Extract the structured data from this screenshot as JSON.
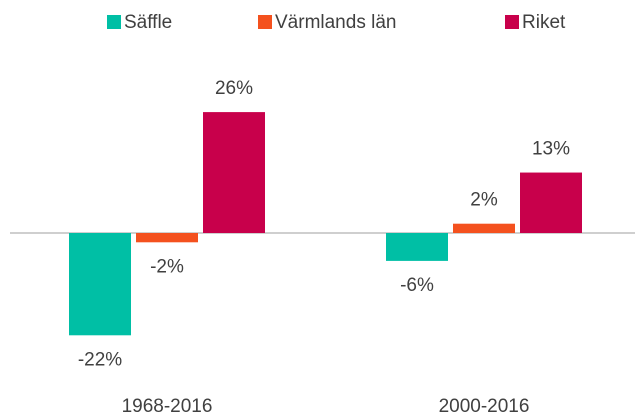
{
  "chart_data": {
    "type": "bar",
    "categories": [
      "1968-2016",
      "2000-2016"
    ],
    "series": [
      {
        "name": "Säffle",
        "color": "#00bfa5",
        "values": [
          -22,
          -6
        ],
        "value_labels": [
          "-22%",
          "-6%"
        ]
      },
      {
        "name": "Värmlands län",
        "color": "#f4511e",
        "values": [
          -2,
          2
        ],
        "value_labels": [
          "-2%",
          "2%"
        ]
      },
      {
        "name": "Riket",
        "color": "#c8004b",
        "values": [
          26,
          13
        ],
        "value_labels": [
          "26%",
          "13%"
        ]
      }
    ],
    "legend": "top"
  }
}
